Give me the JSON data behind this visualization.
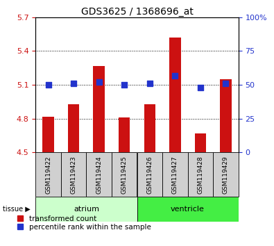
{
  "title": "GDS3625 / 1368696_at",
  "samples": [
    "GSM119422",
    "GSM119423",
    "GSM119424",
    "GSM119425",
    "GSM119426",
    "GSM119427",
    "GSM119428",
    "GSM119429"
  ],
  "transformed_count": [
    4.82,
    4.93,
    5.27,
    4.81,
    4.93,
    5.52,
    4.67,
    5.15
  ],
  "percentile_rank": [
    50,
    51,
    52,
    50,
    51,
    57,
    48,
    51
  ],
  "ylim_left": [
    4.5,
    5.7
  ],
  "yticks_left": [
    4.5,
    4.8,
    5.1,
    5.4,
    5.7
  ],
  "ylim_right": [
    0,
    100
  ],
  "yticks_right": [
    0,
    25,
    50,
    75,
    100
  ],
  "bar_color": "#cc1111",
  "dot_color": "#2233cc",
  "tissue_groups": [
    {
      "label": "atrium",
      "start": 0,
      "end": 4,
      "color": "#ccffcc"
    },
    {
      "label": "ventricle",
      "start": 4,
      "end": 8,
      "color": "#44ee44"
    }
  ],
  "legend_bar_label": "transformed count",
  "legend_dot_label": "percentile rank within the sample",
  "tissue_label": "tissue",
  "bar_width": 0.45,
  "sample_box_color": "#d0d0d0",
  "bg_color": "#ffffff"
}
